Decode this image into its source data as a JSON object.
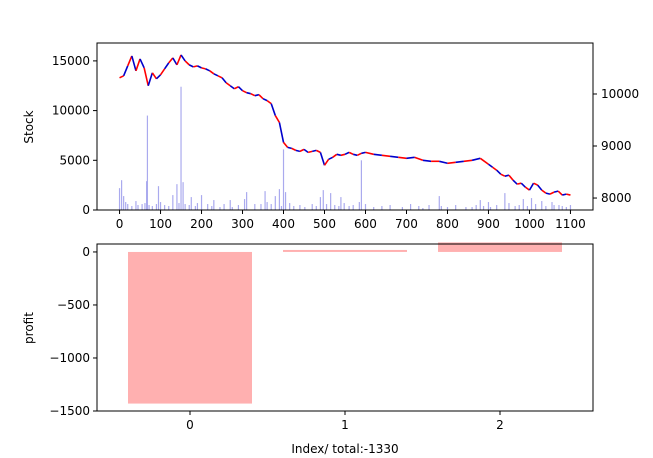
{
  "chart_data": [
    {
      "type": "line",
      "ylabel": "Stock",
      "xlim": [
        -55,
        1155
      ],
      "ylim": [
        0,
        16800
      ],
      "y2lim": [
        7770,
        10980
      ],
      "xticks": [
        0,
        100,
        200,
        300,
        400,
        500,
        600,
        700,
        800,
        900,
        1000,
        1100
      ],
      "yticks": [
        0,
        5000,
        10000,
        15000
      ],
      "y2ticks": [
        8000,
        9000,
        10000
      ],
      "price_series": {
        "colors": [
          "#ff0000",
          "#0000cc"
        ],
        "points": [
          [
            0,
            13300
          ],
          [
            10,
            13500
          ],
          [
            20,
            14500
          ],
          [
            30,
            15500
          ],
          [
            40,
            14000
          ],
          [
            50,
            15200
          ],
          [
            60,
            14300
          ],
          [
            70,
            12500
          ],
          [
            80,
            13800
          ],
          [
            90,
            13200
          ],
          [
            100,
            13600
          ],
          [
            110,
            14200
          ],
          [
            120,
            14800
          ],
          [
            130,
            15300
          ],
          [
            140,
            14600
          ],
          [
            150,
            15600
          ],
          [
            160,
            15000
          ],
          [
            170,
            14600
          ],
          [
            180,
            14400
          ],
          [
            190,
            14500
          ],
          [
            200,
            14300
          ],
          [
            210,
            14200
          ],
          [
            220,
            14000
          ],
          [
            230,
            13700
          ],
          [
            240,
            13500
          ],
          [
            250,
            13300
          ],
          [
            260,
            12800
          ],
          [
            270,
            12500
          ],
          [
            280,
            12200
          ],
          [
            290,
            12400
          ],
          [
            300,
            12000
          ],
          [
            310,
            11800
          ],
          [
            320,
            11700
          ],
          [
            330,
            11500
          ],
          [
            340,
            11600
          ],
          [
            350,
            11200
          ],
          [
            360,
            11000
          ],
          [
            370,
            10700
          ],
          [
            380,
            9500
          ],
          [
            390,
            8800
          ],
          [
            400,
            6800
          ],
          [
            410,
            6300
          ],
          [
            420,
            6200
          ],
          [
            430,
            6000
          ],
          [
            440,
            5900
          ],
          [
            450,
            6100
          ],
          [
            460,
            5800
          ],
          [
            470,
            5900
          ],
          [
            480,
            6000
          ],
          [
            490,
            5800
          ],
          [
            500,
            4500
          ],
          [
            510,
            5100
          ],
          [
            520,
            5300
          ],
          [
            530,
            5600
          ],
          [
            540,
            5500
          ],
          [
            550,
            5600
          ],
          [
            560,
            5800
          ],
          [
            570,
            5600
          ],
          [
            580,
            5500
          ],
          [
            590,
            5700
          ],
          [
            600,
            5800
          ],
          [
            620,
            5600
          ],
          [
            640,
            5500
          ],
          [
            660,
            5400
          ],
          [
            680,
            5300
          ],
          [
            700,
            5200
          ],
          [
            720,
            5300
          ],
          [
            740,
            5000
          ],
          [
            760,
            4900
          ],
          [
            780,
            4900
          ],
          [
            800,
            4700
          ],
          [
            820,
            4800
          ],
          [
            840,
            4900
          ],
          [
            860,
            5000
          ],
          [
            880,
            5200
          ],
          [
            900,
            4600
          ],
          [
            910,
            4300
          ],
          [
            920,
            4000
          ],
          [
            930,
            3600
          ],
          [
            940,
            3400
          ],
          [
            950,
            3500
          ],
          [
            960,
            3000
          ],
          [
            970,
            2600
          ],
          [
            980,
            2700
          ],
          [
            990,
            2300
          ],
          [
            1000,
            2000
          ],
          [
            1010,
            2700
          ],
          [
            1020,
            2500
          ],
          [
            1030,
            2000
          ],
          [
            1040,
            1700
          ],
          [
            1050,
            1600
          ],
          [
            1060,
            1800
          ],
          [
            1070,
            1900
          ],
          [
            1080,
            1500
          ],
          [
            1090,
            1600
          ],
          [
            1100,
            1500
          ]
        ]
      },
      "volume_series": {
        "color": "#aaaaee",
        "bars": [
          [
            0,
            2200
          ],
          [
            5,
            3000
          ],
          [
            10,
            1400
          ],
          [
            15,
            800
          ],
          [
            20,
            600
          ],
          [
            30,
            400
          ],
          [
            40,
            900
          ],
          [
            45,
            500
          ],
          [
            55,
            600
          ],
          [
            62,
            700
          ],
          [
            66,
            2900
          ],
          [
            68,
            9500
          ],
          [
            72,
            500
          ],
          [
            80,
            400
          ],
          [
            90,
            600
          ],
          [
            95,
            2400
          ],
          [
            100,
            800
          ],
          [
            110,
            500
          ],
          [
            120,
            400
          ],
          [
            130,
            1500
          ],
          [
            140,
            2600
          ],
          [
            145,
            700
          ],
          [
            150,
            12400
          ],
          [
            155,
            2800
          ],
          [
            160,
            600
          ],
          [
            170,
            500
          ],
          [
            175,
            1300
          ],
          [
            185,
            400
          ],
          [
            190,
            700
          ],
          [
            200,
            1500
          ],
          [
            215,
            600
          ],
          [
            225,
            400
          ],
          [
            230,
            1000
          ],
          [
            245,
            300
          ],
          [
            255,
            600
          ],
          [
            270,
            1000
          ],
          [
            275,
            300
          ],
          [
            290,
            500
          ],
          [
            305,
            1100
          ],
          [
            310,
            1800
          ],
          [
            330,
            600
          ],
          [
            345,
            600
          ],
          [
            355,
            1900
          ],
          [
            360,
            800
          ],
          [
            370,
            600
          ],
          [
            380,
            1400
          ],
          [
            390,
            2100
          ],
          [
            395,
            400
          ],
          [
            400,
            6100
          ],
          [
            405,
            1800
          ],
          [
            415,
            700
          ],
          [
            425,
            400
          ],
          [
            440,
            500
          ],
          [
            452,
            300
          ],
          [
            470,
            600
          ],
          [
            480,
            400
          ],
          [
            490,
            1300
          ],
          [
            497,
            2000
          ],
          [
            505,
            600
          ],
          [
            515,
            1700
          ],
          [
            525,
            500
          ],
          [
            535,
            400
          ],
          [
            540,
            1300
          ],
          [
            548,
            700
          ],
          [
            560,
            400
          ],
          [
            570,
            500
          ],
          [
            585,
            800
          ],
          [
            590,
            5000
          ],
          [
            600,
            600
          ],
          [
            620,
            300
          ],
          [
            640,
            400
          ],
          [
            660,
            500
          ],
          [
            690,
            300
          ],
          [
            710,
            600
          ],
          [
            730,
            400
          ],
          [
            740,
            200
          ],
          [
            755,
            500
          ],
          [
            780,
            1400
          ],
          [
            785,
            400
          ],
          [
            800,
            300
          ],
          [
            820,
            500
          ],
          [
            845,
            300
          ],
          [
            860,
            300
          ],
          [
            870,
            500
          ],
          [
            880,
            1000
          ],
          [
            888,
            400
          ],
          [
            900,
            800
          ],
          [
            905,
            300
          ],
          [
            920,
            500
          ],
          [
            940,
            1700
          ],
          [
            950,
            700
          ],
          [
            965,
            400
          ],
          [
            975,
            500
          ],
          [
            985,
            1100
          ],
          [
            995,
            400
          ],
          [
            1005,
            1200
          ],
          [
            1015,
            600
          ],
          [
            1030,
            900
          ],
          [
            1040,
            400
          ],
          [
            1055,
            800
          ],
          [
            1060,
            500
          ],
          [
            1072,
            500
          ],
          [
            1080,
            400
          ],
          [
            1090,
            300
          ],
          [
            1100,
            500
          ]
        ]
      }
    },
    {
      "type": "bar",
      "ylabel": "profit",
      "xlabel": "Index/ total:-1330",
      "categories": [
        "0",
        "1",
        "2"
      ],
      "values": [
        -1430,
        10,
        90
      ],
      "color": "#ffb0b0",
      "xlim": [
        -0.6,
        2.6
      ],
      "ylim": [
        -1500,
        75
      ],
      "yticks": [
        -1500,
        -1000,
        -500,
        0
      ]
    }
  ]
}
